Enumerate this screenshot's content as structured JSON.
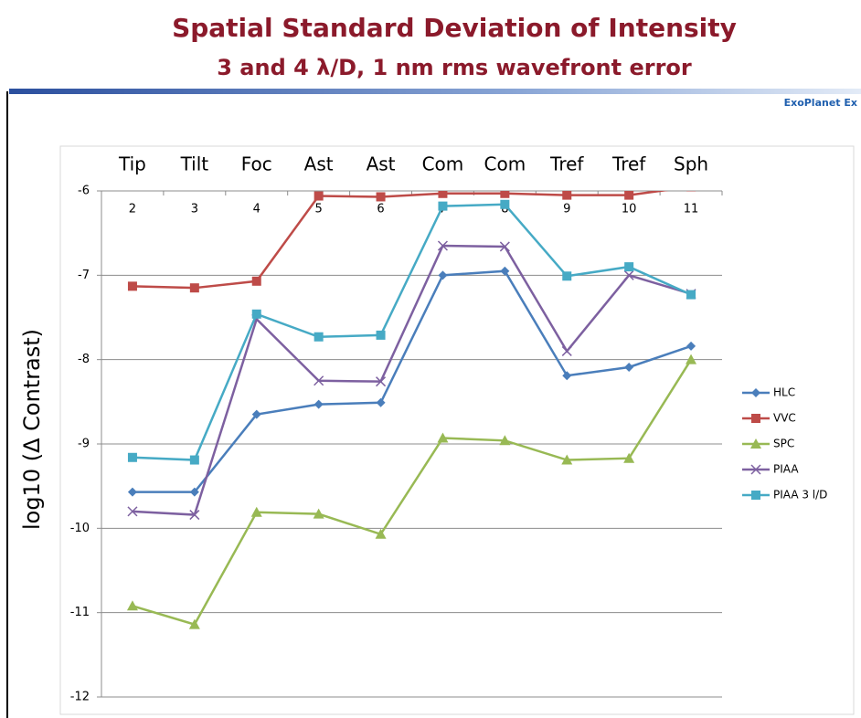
{
  "brand": "ExoPlanet Ex",
  "chart_data": {
    "type": "line",
    "title": "Spatial Standard Deviation of Intensity",
    "subtitle": "3 and 4 λ/D, 1 nm rms wavefront error",
    "ylabel": "log10 (Δ Contrast)",
    "x": [
      2,
      3,
      4,
      5,
      6,
      7,
      8,
      9,
      10,
      11
    ],
    "x_annotations": [
      "Tip",
      "Tilt",
      "Foc",
      "Ast",
      "Ast",
      "Com",
      "Com",
      "Tref",
      "Tref",
      "Sph"
    ],
    "xlim": [
      1.5,
      11.5
    ],
    "xticks": [
      2,
      3,
      4,
      5,
      6,
      7,
      8,
      9,
      10,
      11
    ],
    "ylim": [
      -12,
      -6
    ],
    "yticks": [
      -6,
      -7,
      -8,
      -9,
      -10,
      -11,
      -12
    ],
    "grid": true,
    "legend": "right",
    "series": [
      {
        "name": "HLC",
        "color": "#4a7ebb",
        "marker": "diamond",
        "values": [
          -9.57,
          -9.57,
          -8.65,
          -8.53,
          -8.51,
          -7.0,
          -6.95,
          -8.19,
          -8.09,
          -7.84
        ]
      },
      {
        "name": "VVC",
        "color": "#be4b48",
        "marker": "square",
        "values": [
          -7.13,
          -7.15,
          -7.07,
          -6.06,
          -6.07,
          -6.03,
          -6.03,
          -6.05,
          -6.05,
          -5.95
        ]
      },
      {
        "name": "SPC",
        "color": "#98b954",
        "marker": "triangle",
        "values": [
          -10.92,
          -11.14,
          -9.81,
          -9.83,
          -10.07,
          -8.93,
          -8.96,
          -9.19,
          -9.17,
          -8.0
        ]
      },
      {
        "name": "PIAA",
        "color": "#7d60a0",
        "marker": "x",
        "values": [
          -9.8,
          -9.84,
          -7.52,
          -8.25,
          -8.26,
          -6.65,
          -6.66,
          -7.9,
          -7.0,
          -7.22
        ]
      },
      {
        "name": "PIAA 3 l/D",
        "color": "#46aac5",
        "marker": "square",
        "values": [
          -9.16,
          -9.19,
          -7.46,
          -7.73,
          -7.71,
          -6.18,
          -6.16,
          -7.01,
          -6.9,
          -7.23
        ]
      }
    ]
  }
}
